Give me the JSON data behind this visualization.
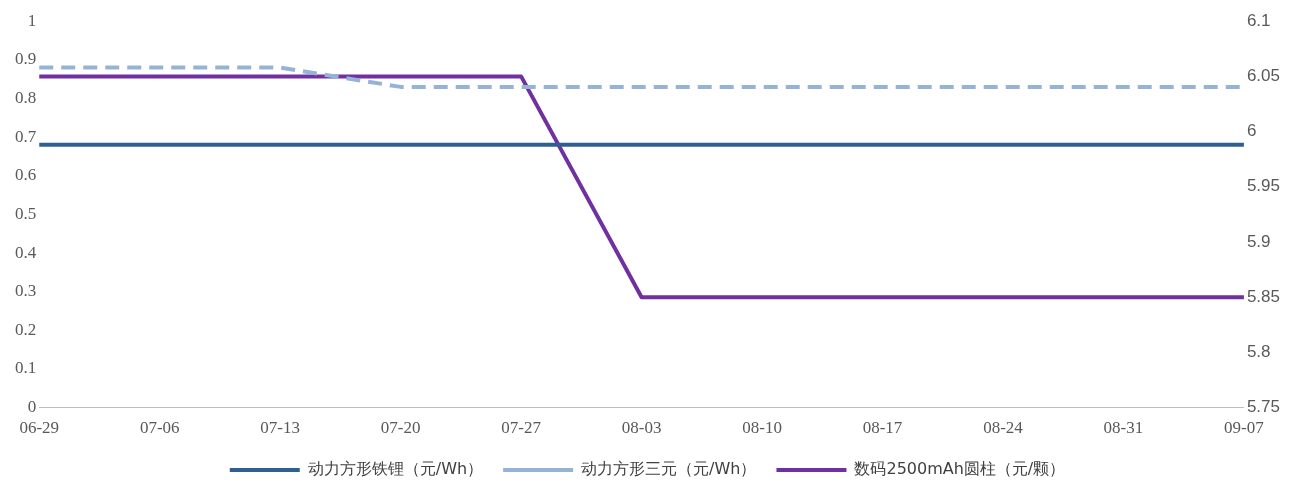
{
  "chart_data": {
    "type": "line",
    "categories": [
      "06-29",
      "07-06",
      "07-13",
      "07-20",
      "07-27",
      "08-03",
      "08-10",
      "08-17",
      "08-24",
      "08-31",
      "09-07"
    ],
    "series": [
      {
        "name": "动力方形铁锂（元/Wh）",
        "color": "#2f5f8f",
        "values": [
          0.68,
          0.68,
          0.68,
          0.68,
          0.68,
          0.68,
          0.68,
          0.68,
          0.68,
          0.68,
          0.68
        ],
        "line_style": "solid"
      },
      {
        "name": "动力方形三元（元/Wh）",
        "color": "#95b3d7",
        "values": [
          0.88,
          0.88,
          0.88,
          0.83,
          0.83,
          0.83,
          0.83,
          0.83,
          0.83,
          0.83,
          0.83
        ],
        "line_style": "dashed"
      },
      {
        "name": "数码2500mAh圆柱（元/颗）",
        "color": "#7030a0",
        "values": [
          6.05,
          6.05,
          6.05,
          6.05,
          6.05,
          5.85,
          5.85,
          5.85,
          5.85,
          5.85,
          5.85
        ],
        "line_style": "solid",
        "axis": "y2"
      }
    ],
    "ylim": [
      0,
      1
    ],
    "yticks": [
      0,
      0.1,
      0.2,
      0.3,
      0.4,
      0.5,
      0.6,
      0.7,
      0.8,
      0.9,
      1
    ],
    "y2lim": [
      5.75,
      6.1
    ],
    "y2ticks": [
      5.75,
      5.8,
      5.85,
      5.9,
      5.95,
      6,
      6.05,
      6.1
    ],
    "grid": false,
    "legend": "bottom",
    "marker": "none"
  }
}
